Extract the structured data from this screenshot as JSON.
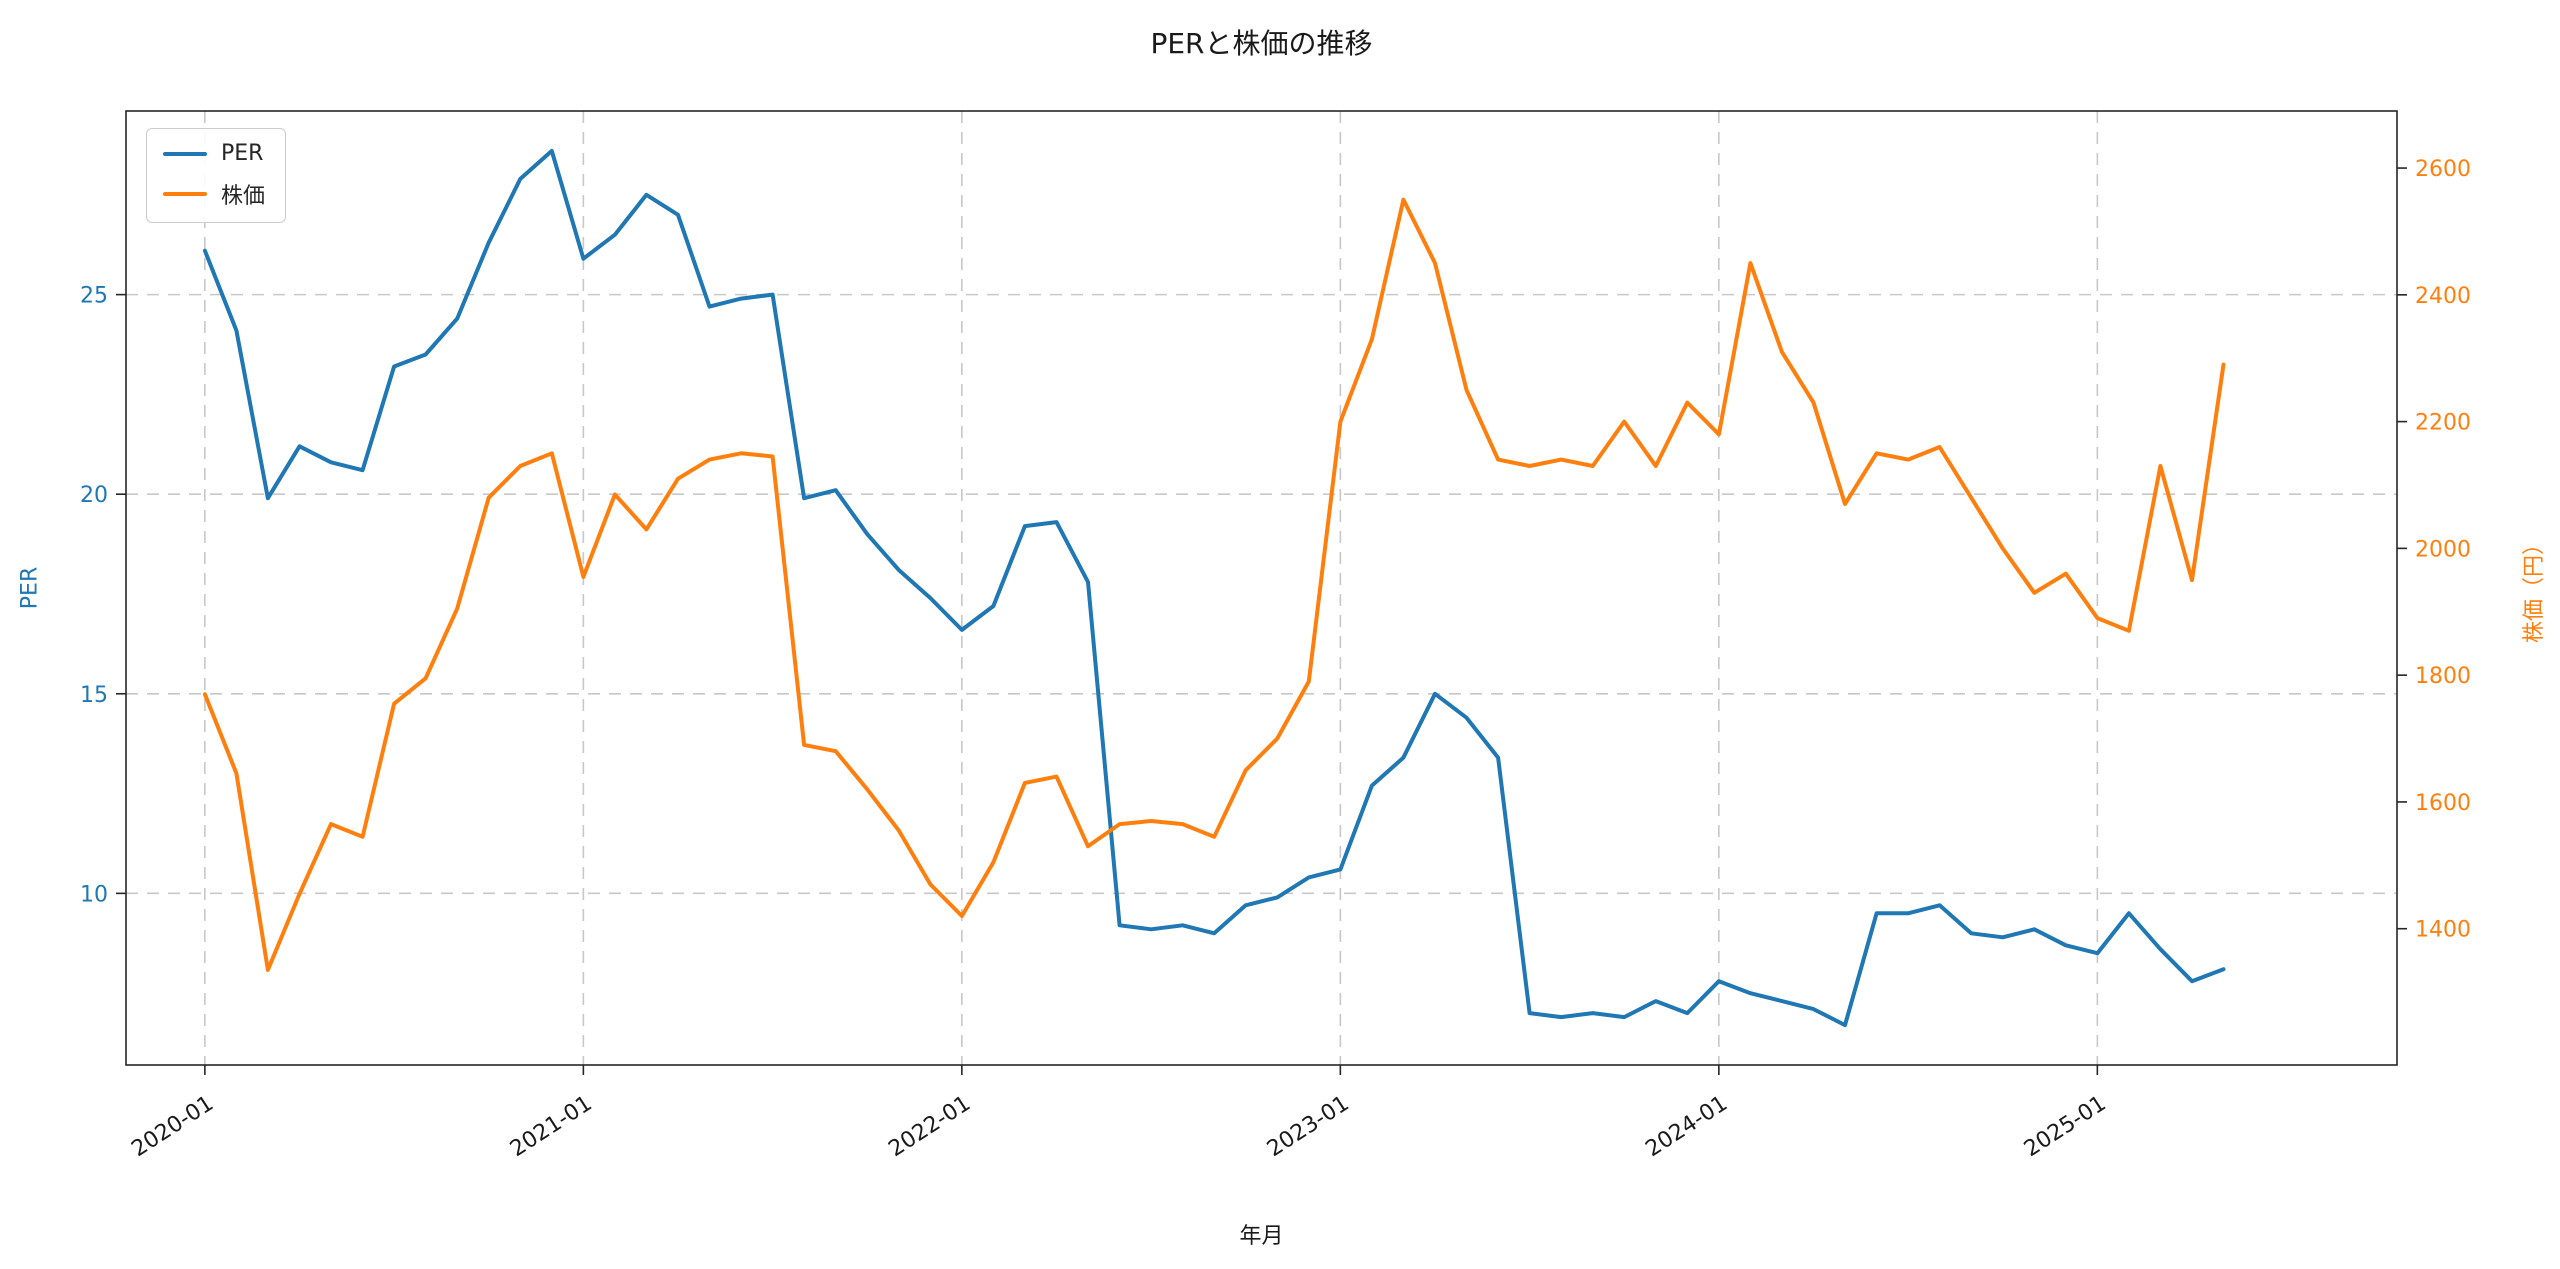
{
  "title": "PERと株価の推移",
  "chart_data": {
    "type": "line",
    "title": "PERと株価の推移",
    "xlabel": "年月",
    "grid": true,
    "legend_position": "upper left",
    "x": [
      "2020-01",
      "2020-02",
      "2020-03",
      "2020-04",
      "2020-05",
      "2020-06",
      "2020-07",
      "2020-08",
      "2020-09",
      "2020-10",
      "2020-11",
      "2020-12",
      "2021-01",
      "2021-02",
      "2021-03",
      "2021-04",
      "2021-05",
      "2021-06",
      "2021-07",
      "2021-08",
      "2021-09",
      "2021-10",
      "2021-11",
      "2021-12",
      "2022-01",
      "2022-02",
      "2022-03",
      "2022-04",
      "2022-05",
      "2022-06",
      "2022-07",
      "2022-08",
      "2022-09",
      "2022-10",
      "2022-11",
      "2022-12",
      "2023-01",
      "2023-02",
      "2023-03",
      "2023-04",
      "2023-05",
      "2023-06",
      "2023-07",
      "2023-08",
      "2023-09",
      "2023-10",
      "2023-11",
      "2023-12",
      "2024-01",
      "2024-02",
      "2024-03",
      "2024-04",
      "2024-05",
      "2024-06",
      "2024-07",
      "2024-08",
      "2024-09",
      "2024-10",
      "2024-11",
      "2024-12",
      "2025-01",
      "2025-02",
      "2025-03",
      "2025-04",
      "2025-05"
    ],
    "x_ticks": {
      "labels": [
        "2020-01",
        "2021-01",
        "2022-01",
        "2023-01",
        "2024-01",
        "2025-01"
      ],
      "positions": [
        0,
        12,
        24,
        36,
        48,
        60
      ]
    },
    "x_range": [
      -2.5,
      69.5
    ],
    "left_axis": {
      "label": "PER",
      "color": "#1f77b4",
      "ticks": [
        10,
        15,
        20,
        25
      ],
      "range": [
        5.7,
        29.6
      ]
    },
    "right_axis": {
      "label": "株価（円）",
      "color": "#ff7f0e",
      "ticks": [
        1400,
        1600,
        1800,
        2000,
        2200,
        2400,
        2600
      ],
      "range": [
        1185,
        2690
      ]
    },
    "series": [
      {
        "name": "PER",
        "axis": "left",
        "color": "#1f77b4",
        "values": [
          26.1,
          24.1,
          19.9,
          21.2,
          20.8,
          20.6,
          23.2,
          23.5,
          24.4,
          26.3,
          27.9,
          28.6,
          25.9,
          26.5,
          27.5,
          27.0,
          24.7,
          24.9,
          25.0,
          19.9,
          20.1,
          19.0,
          18.1,
          17.4,
          16.6,
          17.2,
          19.2,
          19.3,
          17.8,
          9.2,
          9.1,
          9.2,
          9.0,
          9.7,
          9.9,
          10.4,
          10.6,
          12.7,
          13.4,
          15.0,
          14.4,
          13.4,
          7.0,
          6.9,
          7.0,
          6.9,
          7.3,
          7.0,
          7.8,
          7.5,
          7.3,
          7.1,
          6.7,
          9.5,
          9.5,
          9.7,
          9.0,
          8.9,
          9.1,
          8.7,
          8.5,
          9.5,
          8.6,
          7.8,
          8.1
        ]
      },
      {
        "name": "株価",
        "axis": "right",
        "color": "#ff7f0e",
        "values": [
          1770,
          1645,
          1335,
          1455,
          1565,
          1545,
          1755,
          1795,
          1905,
          2080,
          2130,
          2150,
          1955,
          2085,
          2030,
          2110,
          2140,
          2150,
          2145,
          1690,
          1680,
          1620,
          1555,
          1470,
          1420,
          1505,
          1630,
          1640,
          1530,
          1565,
          1570,
          1565,
          1545,
          1650,
          1700,
          1790,
          2200,
          2330,
          2550,
          2450,
          2250,
          2140,
          2130,
          2140,
          2130,
          2200,
          2130,
          2230,
          2180,
          2450,
          2310,
          2230,
          2070,
          2150,
          2140,
          2160,
          2080,
          2000,
          1930,
          1960,
          1890,
          1870,
          2130,
          1950,
          2290
        ]
      }
    ]
  },
  "legend": {
    "items": [
      {
        "label": "PER",
        "color": "#1f77b4"
      },
      {
        "label": "株価",
        "color": "#ff7f0e"
      }
    ]
  },
  "colors": {
    "per": "#1f77b4",
    "price": "#ff7f0e",
    "grid": "#c8c8c8",
    "spine": "#262626",
    "text": "#1a1a1a"
  }
}
